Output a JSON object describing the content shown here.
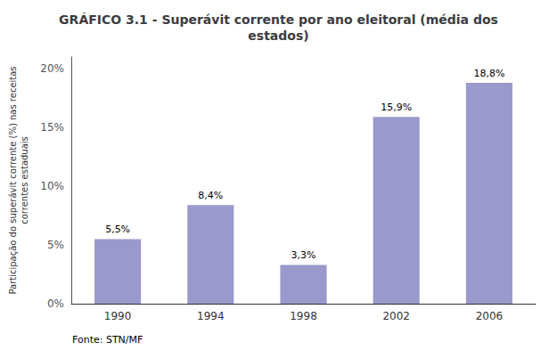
{
  "chart_data": {
    "type": "bar",
    "title": "GRÁFICO 3.1 - Superávit corrente por ano eleitoral (média dos\nestados)",
    "ylabel": "Participação do superávit corrente (%) nas receitas\ncorrentes estaduais",
    "annotations": [
      "Fonte: STN/MF"
    ],
    "categories": [
      "1990",
      "1994",
      "1998",
      "2002",
      "2006"
    ],
    "values": [
      5.5,
      8.4,
      3.3,
      15.9,
      18.8
    ],
    "value_labels": [
      "5,5%",
      "8,4%",
      "3,3%",
      "15,9%",
      "18,8%"
    ],
    "color": "#9999cc",
    "ylim": [
      0,
      21
    ],
    "yticks": [
      {
        "value": 0,
        "label": "0%"
      },
      {
        "value": 5,
        "label": "5%"
      },
      {
        "value": 10,
        "label": "10%"
      },
      {
        "value": 15,
        "label": "15%"
      },
      {
        "value": 20,
        "label": "20%"
      }
    ],
    "grid": false
  }
}
